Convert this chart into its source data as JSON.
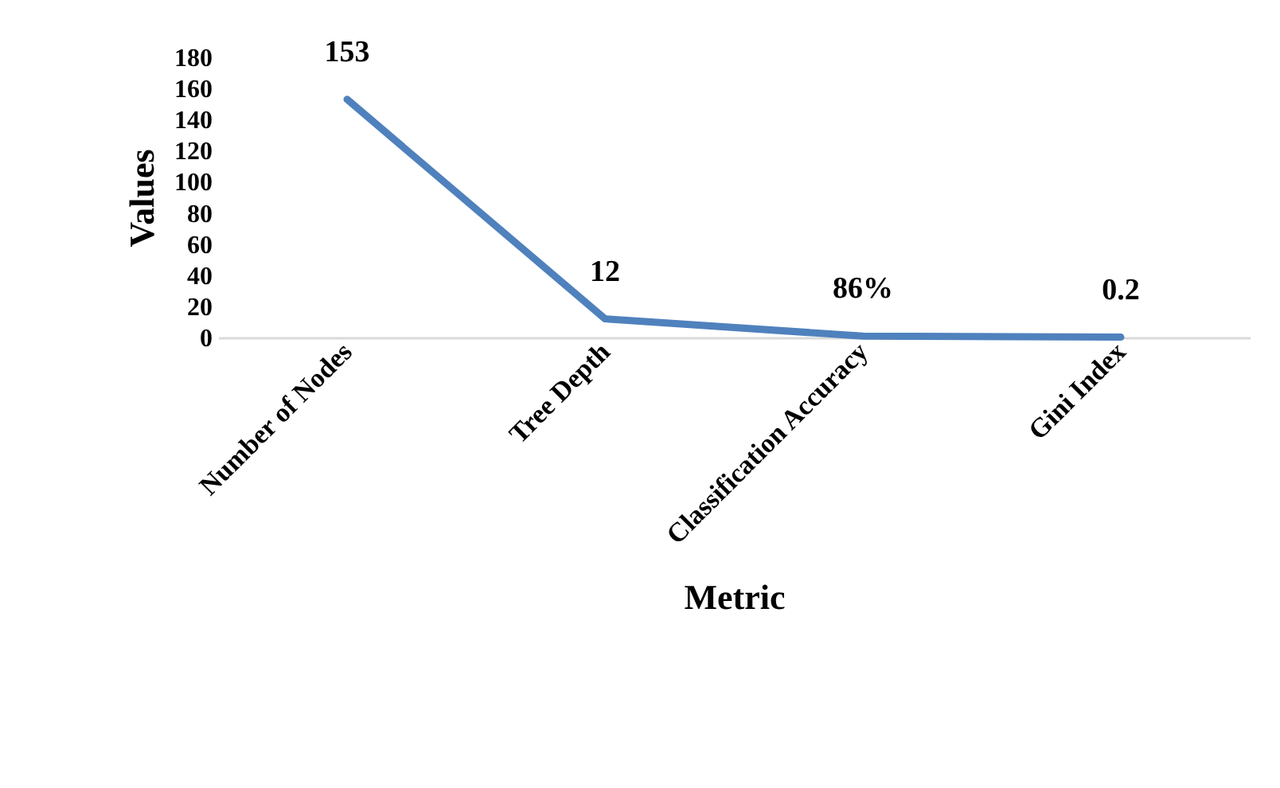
{
  "chart_data": {
    "type": "line",
    "xlabel": "Metric",
    "ylabel": "Values",
    "categories": [
      "Number of Nodes",
      "Tree Depth",
      "Classification Accuracy",
      "Gini Index"
    ],
    "series": [
      {
        "color": "#4f81bd",
        "values": [
          153,
          12,
          0.86,
          0.2
        ],
        "value_labels": [
          "153",
          "12",
          "86%",
          "0.2"
        ]
      }
    ],
    "ylim": [
      0,
      180
    ],
    "yticks": [
      0,
      20,
      40,
      60,
      80,
      100,
      120,
      140,
      160,
      180
    ],
    "grid": false,
    "legend": false,
    "marker": "none",
    "line_style": "solid"
  }
}
